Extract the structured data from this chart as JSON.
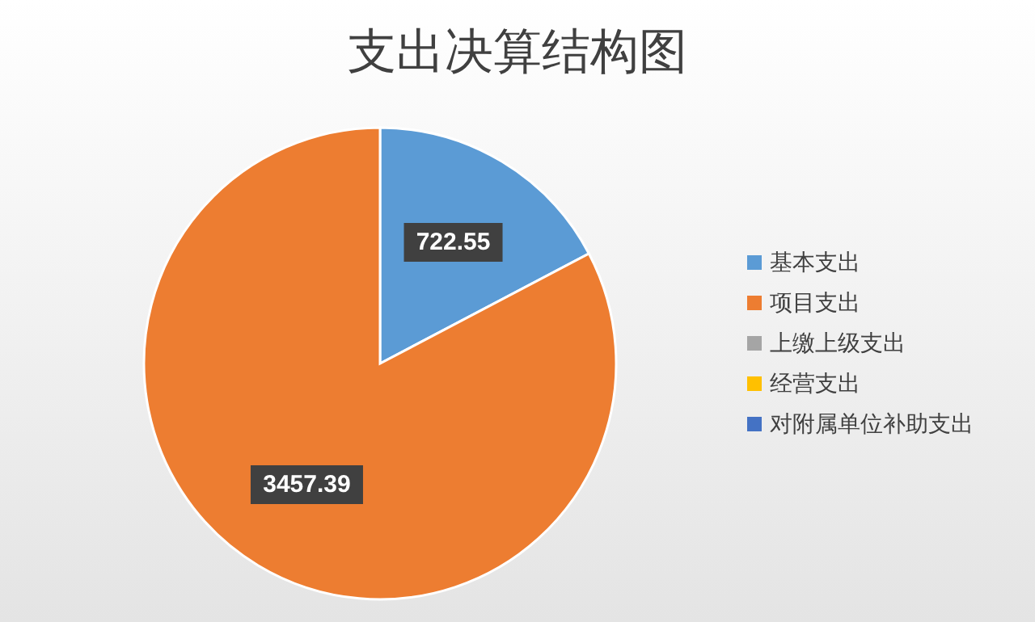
{
  "chart_data": {
    "type": "pie",
    "title": "支出决算结构图",
    "categories": [
      "基本支出",
      "项目支出",
      "上缴上级支出",
      "经营支出",
      "对附属单位补助支出"
    ],
    "values": [
      722.55,
      3457.39,
      0,
      0,
      0
    ],
    "value_labels": [
      "722.55",
      "3457.39",
      null,
      null,
      null
    ],
    "colors": [
      "#5b9bd5",
      "#ed7d31",
      "#a5a5a5",
      "#ffc000",
      "#4472c4"
    ],
    "legend": "right"
  }
}
